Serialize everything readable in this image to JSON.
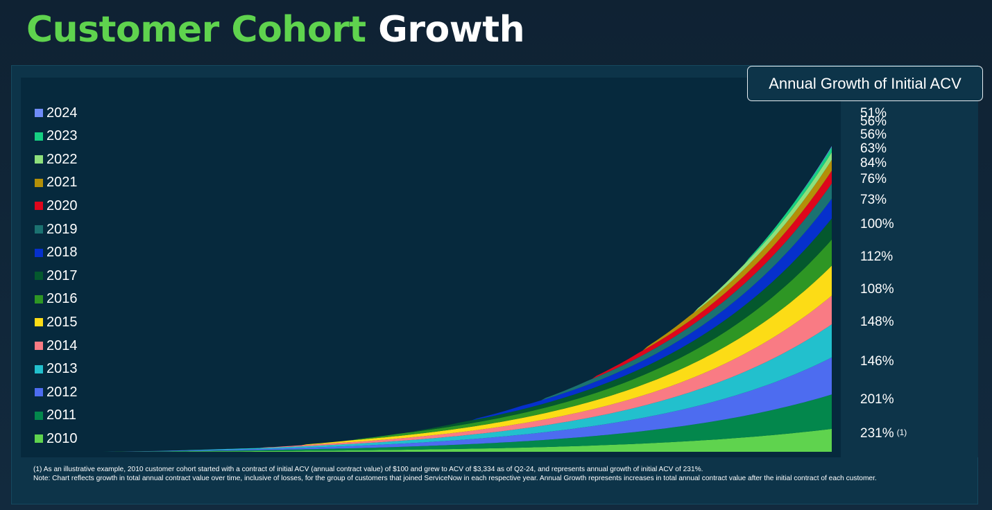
{
  "header": {
    "title_part1": "Customer Cohort",
    "title_part2": "Growth"
  },
  "panel": {
    "growth_box_label": "Annual Growth of Initial ACV"
  },
  "footnotes": {
    "note1": "(1) As an illustrative example, 2010 customer cohort started with a contract of initial ACV (annual contract value) of $100 and grew to ACV of $3,334 as of Q2-24, and represents annual growth of initial ACV of 231%.",
    "note2": "Note: Chart reflects growth in total annual contract value over time, inclusive of losses, for the group of customers that joined ServiceNow in each respective year.  Annual Growth represents increases in total annual contract value after the initial contract of each customer."
  },
  "chart_data": {
    "type": "area",
    "stacked": true,
    "legend_position": "left",
    "grid": false,
    "series": [
      {
        "name": "2010",
        "color": "#5fd34e",
        "start": 0.0,
        "final": 36,
        "growth_label": "231%",
        "footnote_marker": "(1)"
      },
      {
        "name": "2011",
        "color": "#03874c",
        "start": 0.0,
        "final": 54,
        "growth_label": "201%"
      },
      {
        "name": "2012",
        "color": "#4d6cf0",
        "start": 0.2,
        "final": 58,
        "growth_label": "146%"
      },
      {
        "name": "2013",
        "color": "#22c0cd",
        "start": 1.3,
        "final": 52,
        "growth_label": "148%"
      },
      {
        "name": "2014",
        "color": "#f97b84",
        "start": 3.3,
        "final": 45,
        "growth_label": "108%"
      },
      {
        "name": "2015",
        "color": "#fcdc16",
        "start": 4.1,
        "final": 47,
        "growth_label": "112%"
      },
      {
        "name": "2016",
        "color": "#2e9624",
        "start": 5.1,
        "final": 41,
        "growth_label": "100%"
      },
      {
        "name": "2017",
        "color": "#04582e",
        "start": 6.3,
        "final": 33,
        "growth_label": "73%"
      },
      {
        "name": "2018",
        "color": "#0630cc",
        "start": 7.5,
        "final": 31,
        "growth_label": "76%"
      },
      {
        "name": "2019",
        "color": "#1b7271",
        "start": 8.8,
        "final": 24,
        "growth_label": "84%"
      },
      {
        "name": "2020",
        "color": "#de061c",
        "start": 9.8,
        "final": 20,
        "growth_label": "63%"
      },
      {
        "name": "2021",
        "color": "#b38f08",
        "start": 10.8,
        "final": 17,
        "growth_label": "56%"
      },
      {
        "name": "2022",
        "color": "#8ee07c",
        "start": 11.8,
        "final": 12,
        "growth_label": "56%"
      },
      {
        "name": "2023",
        "color": "#16cf82",
        "start": 12.8,
        "final": 8,
        "growth_label": "51%"
      },
      {
        "name": "2024",
        "color": "#6f8cf8",
        "start": 13.8,
        "final": 2
      }
    ]
  }
}
